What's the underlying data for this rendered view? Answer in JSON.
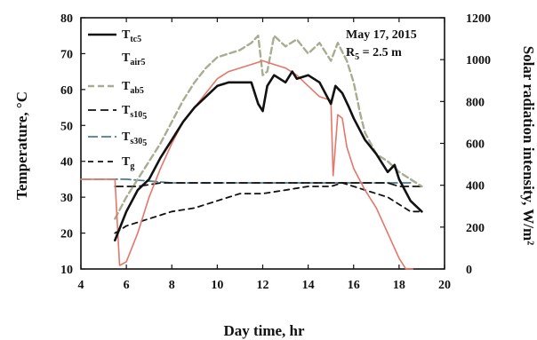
{
  "chart_data": {
    "type": "line",
    "xlabel": "Day time, hr",
    "ylabel": "Temperature, °C",
    "y2label": "Solar radiation intensity, W/m²",
    "xlim": [
      4,
      20
    ],
    "ylim": [
      10,
      80
    ],
    "y2lim": [
      0,
      1200
    ],
    "xticks": [
      "4",
      "6",
      "8",
      "10",
      "12",
      "14",
      "16",
      "18",
      "20"
    ],
    "yticks": [
      "10",
      "20",
      "30",
      "40",
      "50",
      "60",
      "70",
      "80"
    ],
    "y2ticks": [
      "0",
      "200",
      "400",
      "600",
      "800",
      "1000",
      "1200"
    ],
    "annotation": {
      "line1": "May 17, 2015",
      "line2_main": "R",
      "line2_sub": "5",
      "line2_rest": " = 2.5 m"
    },
    "legend_placement": "top-left",
    "series": [
      {
        "name": "T_tc5",
        "label_main": "T",
        "label_sub": "tc5",
        "color": "#111111",
        "dash": "solid",
        "width": 2.6,
        "axis": "left",
        "x": [
          5.5,
          6.0,
          6.5,
          7.0,
          7.5,
          8.0,
          8.5,
          9.0,
          9.5,
          10.0,
          10.5,
          11.0,
          11.5,
          11.8,
          12.0,
          12.2,
          12.5,
          13.0,
          13.3,
          13.5,
          14.0,
          14.5,
          15.0,
          15.2,
          15.5,
          15.8,
          16.0,
          16.5,
          17.0,
          17.5,
          17.8,
          18.0,
          18.5,
          19.0
        ],
        "y": [
          18,
          26,
          32,
          35,
          41,
          46,
          51,
          55,
          58,
          61,
          62,
          62,
          62,
          56,
          54,
          61,
          64,
          62,
          65,
          63,
          64,
          62,
          56,
          61,
          59,
          55,
          52,
          46,
          42,
          37,
          39,
          35,
          29,
          26
        ]
      },
      {
        "name": "T_air5",
        "label_main": "T",
        "label_sub": "air5",
        "color": "#e4776a",
        "dash": "solid",
        "width": 1.6,
        "axis": "left",
        "x": [
          4.0,
          5.5,
          5.7,
          6.0,
          6.5,
          7.0,
          7.5,
          8.0,
          8.5,
          9.0,
          9.5,
          10.0,
          10.5,
          11.0,
          11.5,
          12.0,
          12.5,
          13.0,
          13.5,
          14.0,
          14.5,
          15.0,
          15.1,
          15.3,
          15.5,
          15.7,
          16.0,
          16.5,
          17.0,
          17.5,
          18.0,
          18.3,
          18.6
        ],
        "y": [
          35,
          35,
          11,
          12,
          20,
          30,
          38,
          45,
          51,
          55,
          59,
          63,
          65,
          66,
          67,
          68,
          67,
          66,
          64,
          61,
          58,
          57,
          36,
          53,
          52,
          44,
          38,
          32,
          27,
          20,
          13,
          10,
          10
        ]
      },
      {
        "name": "T_ab5",
        "label_main": "T",
        "label_sub": "ab5",
        "color": "#a7ad90",
        "dash": "7,4",
        "width": 2.4,
        "axis": "left",
        "x": [
          5.5,
          6.0,
          6.5,
          7.0,
          7.5,
          8.0,
          8.5,
          9.0,
          9.5,
          10.0,
          10.5,
          11.0,
          11.5,
          11.8,
          12.0,
          12.2,
          12.5,
          13.0,
          13.5,
          14.0,
          14.5,
          15.0,
          15.3,
          15.7,
          16.0,
          16.3,
          16.5,
          17.0,
          17.5,
          18.0,
          18.5,
          19.0
        ],
        "y": [
          24,
          30,
          35,
          40,
          45,
          51,
          57,
          62,
          66,
          69,
          70,
          71,
          73,
          75,
          64,
          65,
          75,
          72,
          74,
          70,
          73,
          68,
          73,
          68,
          62,
          53,
          48,
          42,
          40,
          37,
          35,
          33
        ]
      },
      {
        "name": "T_s10_5",
        "label_main": "T",
        "label_sub": "s10",
        "label_sub2": "5",
        "color": "#111111",
        "dash": "9,5",
        "width": 1.8,
        "axis": "left",
        "x": [
          5.5,
          6.5,
          7.5,
          8.5,
          9.5,
          10.5,
          11.5,
          12.5,
          13.5,
          14.5,
          15.5,
          16.5,
          17.0,
          17.5,
          18.0,
          18.5,
          19.0
        ],
        "y": [
          33,
          33,
          34,
          34,
          34,
          34,
          34,
          34,
          34,
          34,
          34,
          34,
          34,
          34,
          33,
          33,
          33
        ]
      },
      {
        "name": "T_s30_5",
        "label_main": "T",
        "label_sub": "s30",
        "label_sub2": "5",
        "color": "#4a7e93",
        "dash": "11,4",
        "width": 1.8,
        "axis": "left",
        "x": [
          4.0,
          6.0,
          8.0,
          10.0,
          12.0,
          14.0,
          15.0,
          16.0,
          17.0,
          18.0,
          18.5
        ],
        "y": [
          35,
          35,
          34,
          34,
          34,
          34,
          34,
          34,
          34,
          34,
          34
        ]
      },
      {
        "name": "T_g",
        "label_main": "T",
        "label_sub": "g",
        "color": "#111111",
        "dash": "6,5",
        "width": 1.8,
        "axis": "left",
        "x": [
          5.5,
          6.0,
          7.0,
          8.0,
          9.0,
          10.0,
          11.0,
          12.0,
          13.0,
          14.0,
          15.0,
          15.5,
          16.0,
          16.5,
          17.0,
          17.5,
          18.0,
          18.5,
          19.0
        ],
        "y": [
          20,
          22,
          24,
          26,
          27,
          29,
          31,
          31,
          32,
          33,
          33,
          34,
          33,
          32,
          31,
          30,
          28,
          26,
          26
        ]
      }
    ]
  }
}
